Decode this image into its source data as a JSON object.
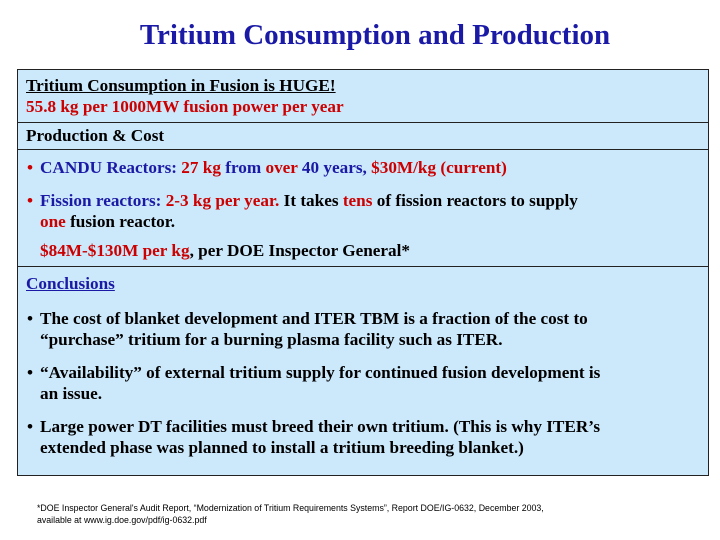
{
  "title": "Tritium Consumption and Production",
  "consumption": {
    "line1": "Tritium Consumption in Fusion is HUGE!",
    "line2": "55.8 kg per 1000MW fusion power per year"
  },
  "production_heading": "Production & Cost",
  "candu": {
    "bullet": "•",
    "p1": "CANDU Reactors: ",
    "p2": "27 kg",
    "p3": " from ",
    "p4": "over",
    "p5": " 40 years, ",
    "p6": "$30M/kg (current)"
  },
  "fission": {
    "bullet": "•",
    "p1": "Fission reactors: ",
    "p2": "2-3 kg per year.",
    "p3": " It takes ",
    "p4": "tens",
    "p5": " of fission reactors to supply",
    "p6": "one",
    "p7": " fusion reactor."
  },
  "doe": {
    "p1": "$84M-$130M per kg",
    "p2": ", per DOE Inspector General*"
  },
  "conclusions_heading": "Conclusions",
  "conclusions": [
    {
      "bullet": "•",
      "line1": "The cost of blanket development and ITER TBM is a fraction of the cost to",
      "line2": "“purchase” tritium for a burning plasma facility such as ITER."
    },
    {
      "bullet": "•",
      "line1": "“Availability” of external tritium supply for continued fusion development is",
      "line2": "an issue."
    },
    {
      "bullet": "•",
      "line1": "Large power DT facilities must breed their own tritium. (This is why ITER’s",
      "line2": "extended phase was planned to install a tritium breeding blanket.)"
    }
  ],
  "footnote": {
    "line1": "*DOE Inspector General's Audit Report, “Modernization of Tritium Requirements Systems”, Report DOE/IG-0632, December 2003,",
    "line2": "available at www.ig.doe.gov/pdf/ig-0632.pdf"
  },
  "colors": {
    "title": "#1a1aa6",
    "highlight": "#cc0000",
    "box_background": "#cce8fb"
  }
}
